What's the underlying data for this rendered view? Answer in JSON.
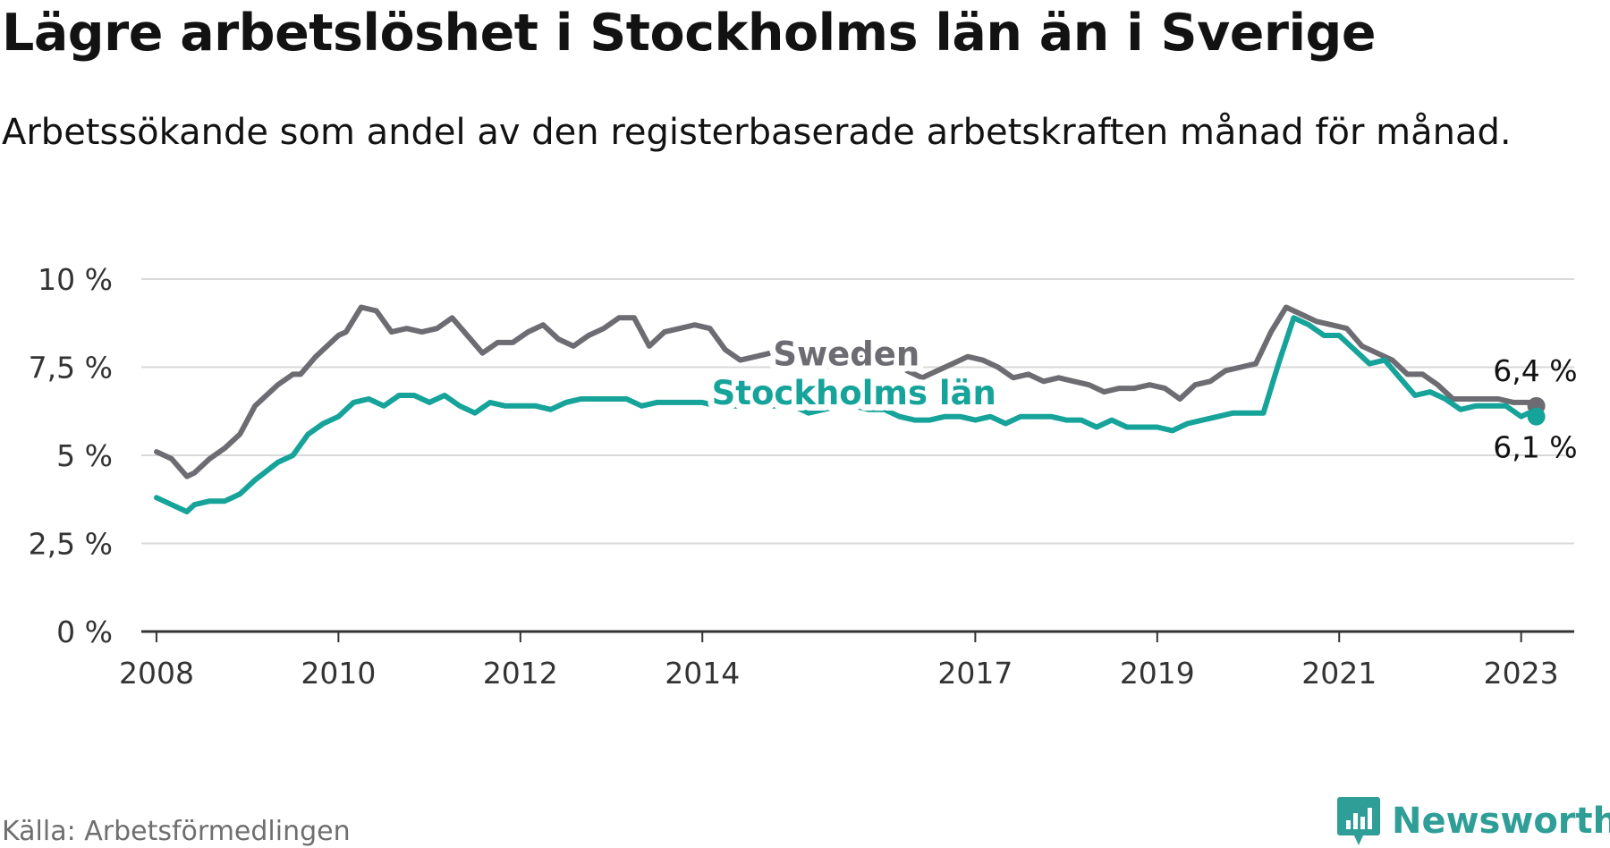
{
  "title": "Lägre arbetslöshet i Stockholms län än i Sverige",
  "subtitle": "Arbetssökande som andel av den registerbaserade arbetskraften månad för månad.",
  "source": "Källa: Arbetsförmedlingen",
  "brand": "Newsworthy",
  "colors": {
    "sweden": "#6d6c72",
    "stockholm": "#15a39a",
    "grid": "#d9d9d9",
    "axis": "#333333",
    "brand": "#2e9e97"
  },
  "chart_data": {
    "type": "line",
    "y_tick_labels": [
      "0 %",
      "2,5 %",
      "5 %",
      "7,5 %",
      "10 %"
    ],
    "y_ticks": [
      0,
      2.5,
      5,
      7.5,
      10
    ],
    "ylim": [
      0,
      10
    ],
    "xlim": [
      "2007-11",
      "2023-08"
    ],
    "x_tick_labels": [
      "2008",
      "2010",
      "2012",
      "2014",
      "2017",
      "2019",
      "2021",
      "2023"
    ],
    "x_ticks": [
      "2008-01",
      "2010-01",
      "2012-01",
      "2014-01",
      "2017-01",
      "2019-01",
      "2021-01",
      "2023-01"
    ],
    "grid": true,
    "series": [
      {
        "name": "Sweden",
        "label_at": "2018-01",
        "end_label": "6,4 %",
        "points": [
          [
            "2008-01",
            5.1
          ],
          [
            "2008-03",
            4.9
          ],
          [
            "2008-05",
            4.4
          ],
          [
            "2008-06",
            4.5
          ],
          [
            "2008-08",
            4.9
          ],
          [
            "2008-10",
            5.2
          ],
          [
            "2008-12",
            5.6
          ],
          [
            "2009-02",
            6.4
          ],
          [
            "2009-05",
            7.0
          ],
          [
            "2009-07",
            7.3
          ],
          [
            "2009-08",
            7.3
          ],
          [
            "2009-10",
            7.8
          ],
          [
            "2009-12",
            8.2
          ],
          [
            "2010-01",
            8.4
          ],
          [
            "2010-02",
            8.5
          ],
          [
            "2010-04",
            9.2
          ],
          [
            "2010-06",
            9.1
          ],
          [
            "2010-08",
            8.5
          ],
          [
            "2010-10",
            8.6
          ],
          [
            "2010-12",
            8.5
          ],
          [
            "2011-02",
            8.6
          ],
          [
            "2011-04",
            8.9
          ],
          [
            "2011-06",
            8.4
          ],
          [
            "2011-08",
            7.9
          ],
          [
            "2011-10",
            8.2
          ],
          [
            "2011-12",
            8.2
          ],
          [
            "2012-02",
            8.5
          ],
          [
            "2012-04",
            8.7
          ],
          [
            "2012-06",
            8.3
          ],
          [
            "2012-08",
            8.1
          ],
          [
            "2012-10",
            8.4
          ],
          [
            "2012-12",
            8.6
          ],
          [
            "2013-02",
            8.9
          ],
          [
            "2013-04",
            8.9
          ],
          [
            "2013-06",
            8.1
          ],
          [
            "2013-08",
            8.5
          ],
          [
            "2013-10",
            8.6
          ],
          [
            "2013-12",
            8.7
          ],
          [
            "2014-02",
            8.6
          ],
          [
            "2014-04",
            8.0
          ],
          [
            "2014-06",
            7.7
          ],
          [
            "2014-08",
            7.8
          ],
          [
            "2014-10",
            7.9
          ],
          [
            "2014-12",
            8.1
          ],
          [
            "2015-02",
            8.1
          ],
          [
            "2015-04",
            7.7
          ],
          [
            "2015-06",
            7.5
          ],
          [
            "2015-08",
            7.7
          ],
          [
            "2015-10",
            7.8
          ],
          [
            "2015-12",
            8.0
          ],
          [
            "2016-02",
            7.9
          ],
          [
            "2016-04",
            7.4
          ],
          [
            "2016-06",
            7.2
          ],
          [
            "2016-08",
            7.4
          ],
          [
            "2016-10",
            7.6
          ],
          [
            "2016-12",
            7.8
          ],
          [
            "2017-02",
            7.7
          ],
          [
            "2017-04",
            7.5
          ],
          [
            "2017-06",
            7.2
          ],
          [
            "2017-08",
            7.3
          ],
          [
            "2017-10",
            7.1
          ],
          [
            "2017-12",
            7.2
          ],
          [
            "2018-02",
            7.1
          ],
          [
            "2018-04",
            7.0
          ],
          [
            "2018-06",
            6.8
          ],
          [
            "2018-08",
            6.9
          ],
          [
            "2018-10",
            6.9
          ],
          [
            "2018-12",
            7.0
          ],
          [
            "2019-02",
            6.9
          ],
          [
            "2019-04",
            6.6
          ],
          [
            "2019-06",
            7.0
          ],
          [
            "2019-08",
            7.1
          ],
          [
            "2019-10",
            7.4
          ],
          [
            "2019-12",
            7.5
          ],
          [
            "2020-02",
            7.6
          ],
          [
            "2020-04",
            8.5
          ],
          [
            "2020-06",
            9.2
          ],
          [
            "2020-08",
            9.0
          ],
          [
            "2020-10",
            8.8
          ],
          [
            "2020-12",
            8.7
          ],
          [
            "2021-02",
            8.6
          ],
          [
            "2021-04",
            8.1
          ],
          [
            "2021-06",
            7.9
          ],
          [
            "2021-08",
            7.7
          ],
          [
            "2021-10",
            7.3
          ],
          [
            "2021-12",
            7.3
          ],
          [
            "2022-02",
            7.0
          ],
          [
            "2022-04",
            6.6
          ],
          [
            "2022-06",
            6.6
          ],
          [
            "2022-08",
            6.6
          ],
          [
            "2022-10",
            6.6
          ],
          [
            "2022-12",
            6.5
          ],
          [
            "2023-02",
            6.5
          ],
          [
            "2023-03",
            6.4
          ]
        ]
      },
      {
        "name": "Stockholms län",
        "label_at": "2012-12",
        "end_label": "6,1 %",
        "points": [
          [
            "2008-01",
            3.8
          ],
          [
            "2008-03",
            3.6
          ],
          [
            "2008-05",
            3.4
          ],
          [
            "2008-06",
            3.6
          ],
          [
            "2008-08",
            3.7
          ],
          [
            "2008-10",
            3.7
          ],
          [
            "2008-12",
            3.9
          ],
          [
            "2009-02",
            4.3
          ],
          [
            "2009-05",
            4.8
          ],
          [
            "2009-07",
            5.0
          ],
          [
            "2009-09",
            5.6
          ],
          [
            "2009-11",
            5.9
          ],
          [
            "2010-01",
            6.1
          ],
          [
            "2010-03",
            6.5
          ],
          [
            "2010-05",
            6.6
          ],
          [
            "2010-07",
            6.4
          ],
          [
            "2010-09",
            6.7
          ],
          [
            "2010-11",
            6.7
          ],
          [
            "2011-01",
            6.5
          ],
          [
            "2011-03",
            6.7
          ],
          [
            "2011-05",
            6.4
          ],
          [
            "2011-07",
            6.2
          ],
          [
            "2011-09",
            6.5
          ],
          [
            "2011-11",
            6.4
          ],
          [
            "2012-01",
            6.4
          ],
          [
            "2012-03",
            6.4
          ],
          [
            "2012-05",
            6.3
          ],
          [
            "2012-07",
            6.5
          ],
          [
            "2012-09",
            6.6
          ],
          [
            "2012-11",
            6.6
          ],
          [
            "2013-01",
            6.6
          ],
          [
            "2013-03",
            6.6
          ],
          [
            "2013-05",
            6.4
          ],
          [
            "2013-07",
            6.5
          ],
          [
            "2013-09",
            6.5
          ],
          [
            "2013-11",
            6.5
          ],
          [
            "2014-01",
            6.5
          ],
          [
            "2014-03",
            6.4
          ],
          [
            "2014-05",
            6.4
          ],
          [
            "2014-07",
            6.4
          ],
          [
            "2014-09",
            6.4
          ],
          [
            "2014-11",
            6.4
          ],
          [
            "2015-01",
            6.4
          ],
          [
            "2015-03",
            6.2
          ],
          [
            "2015-05",
            6.3
          ],
          [
            "2015-07",
            6.4
          ],
          [
            "2015-09",
            6.4
          ],
          [
            "2015-11",
            6.3
          ],
          [
            "2016-01",
            6.3
          ],
          [
            "2016-03",
            6.1
          ],
          [
            "2016-05",
            6.0
          ],
          [
            "2016-07",
            6.0
          ],
          [
            "2016-09",
            6.1
          ],
          [
            "2016-11",
            6.1
          ],
          [
            "2017-01",
            6.0
          ],
          [
            "2017-03",
            6.1
          ],
          [
            "2017-05",
            5.9
          ],
          [
            "2017-07",
            6.1
          ],
          [
            "2017-09",
            6.1
          ],
          [
            "2017-11",
            6.1
          ],
          [
            "2018-01",
            6.0
          ],
          [
            "2018-03",
            6.0
          ],
          [
            "2018-05",
            5.8
          ],
          [
            "2018-07",
            6.0
          ],
          [
            "2018-09",
            5.8
          ],
          [
            "2018-11",
            5.8
          ],
          [
            "2019-01",
            5.8
          ],
          [
            "2019-03",
            5.7
          ],
          [
            "2019-05",
            5.9
          ],
          [
            "2019-07",
            6.0
          ],
          [
            "2019-09",
            6.1
          ],
          [
            "2019-11",
            6.2
          ],
          [
            "2020-01",
            6.2
          ],
          [
            "2020-03",
            6.2
          ],
          [
            "2020-05",
            7.6
          ],
          [
            "2020-07",
            8.9
          ],
          [
            "2020-09",
            8.7
          ],
          [
            "2020-11",
            8.4
          ],
          [
            "2021-01",
            8.4
          ],
          [
            "2021-03",
            8.0
          ],
          [
            "2021-05",
            7.6
          ],
          [
            "2021-07",
            7.7
          ],
          [
            "2021-09",
            7.2
          ],
          [
            "2021-11",
            6.7
          ],
          [
            "2022-01",
            6.8
          ],
          [
            "2022-03",
            6.6
          ],
          [
            "2022-05",
            6.3
          ],
          [
            "2022-07",
            6.4
          ],
          [
            "2022-09",
            6.4
          ],
          [
            "2022-11",
            6.4
          ],
          [
            "2023-01",
            6.1
          ],
          [
            "2023-02",
            6.2
          ],
          [
            "2023-03",
            6.1
          ]
        ]
      }
    ]
  }
}
